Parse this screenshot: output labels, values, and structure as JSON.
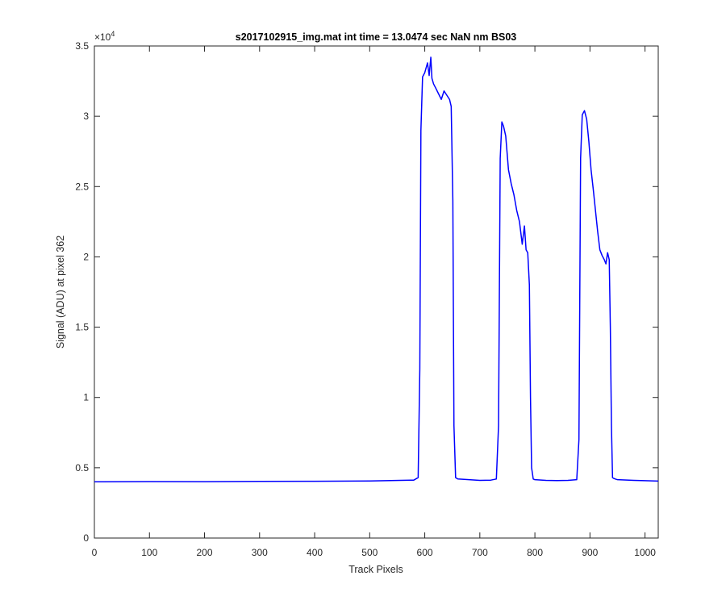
{
  "chart_data": {
    "type": "line",
    "title": "s2017102915_img.mat int time = 13.0474 sec  NaN nm BS03",
    "xlabel": "Track Pixels",
    "ylabel": "Signal (ADU) at pixel 362",
    "xlim": [
      0,
      1024
    ],
    "ylim": [
      0,
      35000
    ],
    "x_ticks": [
      0,
      100,
      200,
      300,
      400,
      500,
      600,
      700,
      800,
      900,
      1000
    ],
    "x_tick_labels": [
      "0",
      "100",
      "200",
      "300",
      "400",
      "500",
      "600",
      "700",
      "800",
      "900",
      "1000"
    ],
    "y_ticks": [
      0,
      5000,
      10000,
      15000,
      20000,
      25000,
      30000,
      35000
    ],
    "y_tick_labels": [
      "0",
      "0.5",
      "1",
      "1.5",
      "2",
      "2.5",
      "3",
      "3.5"
    ],
    "y_exponent_label": "×10",
    "y_exponent_power": "4",
    "grid": false,
    "line_color": "#0000ff",
    "series": [
      {
        "x": [
          0,
          100,
          200,
          300,
          400,
          500,
          580,
          588,
          591,
          593,
          596,
          600,
          605,
          608,
          611,
          613,
          616,
          620,
          625,
          630,
          635,
          640,
          645,
          648,
          651,
          653,
          656,
          660,
          680,
          700,
          720,
          730,
          734,
          737,
          740,
          743,
          747,
          752,
          757,
          762,
          767,
          772,
          777,
          781,
          784,
          787,
          790,
          792,
          794,
          797,
          800,
          820,
          840,
          860,
          876,
          880,
          883,
          886,
          890,
          894,
          898,
          902,
          906,
          910,
          914,
          918,
          922,
          926,
          929,
          932,
          935,
          937,
          939,
          941,
          943,
          946,
          950,
          980,
          1000,
          1024
        ],
        "y": [
          4000,
          4020,
          4010,
          4030,
          4040,
          4060,
          4120,
          4300,
          12000,
          29000,
          32800,
          33100,
          33800,
          32900,
          34200,
          32700,
          32300,
          32000,
          31600,
          31200,
          31800,
          31500,
          31200,
          30700,
          24000,
          8000,
          4300,
          4200,
          4150,
          4100,
          4120,
          4200,
          8000,
          27000,
          29600,
          29300,
          28600,
          26200,
          25200,
          24400,
          23300,
          22500,
          20900,
          22200,
          20500,
          20300,
          18000,
          10000,
          5000,
          4200,
          4150,
          4100,
          4090,
          4100,
          4150,
          7000,
          27000,
          30100,
          30400,
          29800,
          28200,
          26200,
          24800,
          23300,
          21800,
          20500,
          20100,
          19800,
          19500,
          20300,
          19800,
          15000,
          8000,
          4300,
          4250,
          4200,
          4150,
          4100,
          4080,
          4050
        ]
      }
    ]
  }
}
